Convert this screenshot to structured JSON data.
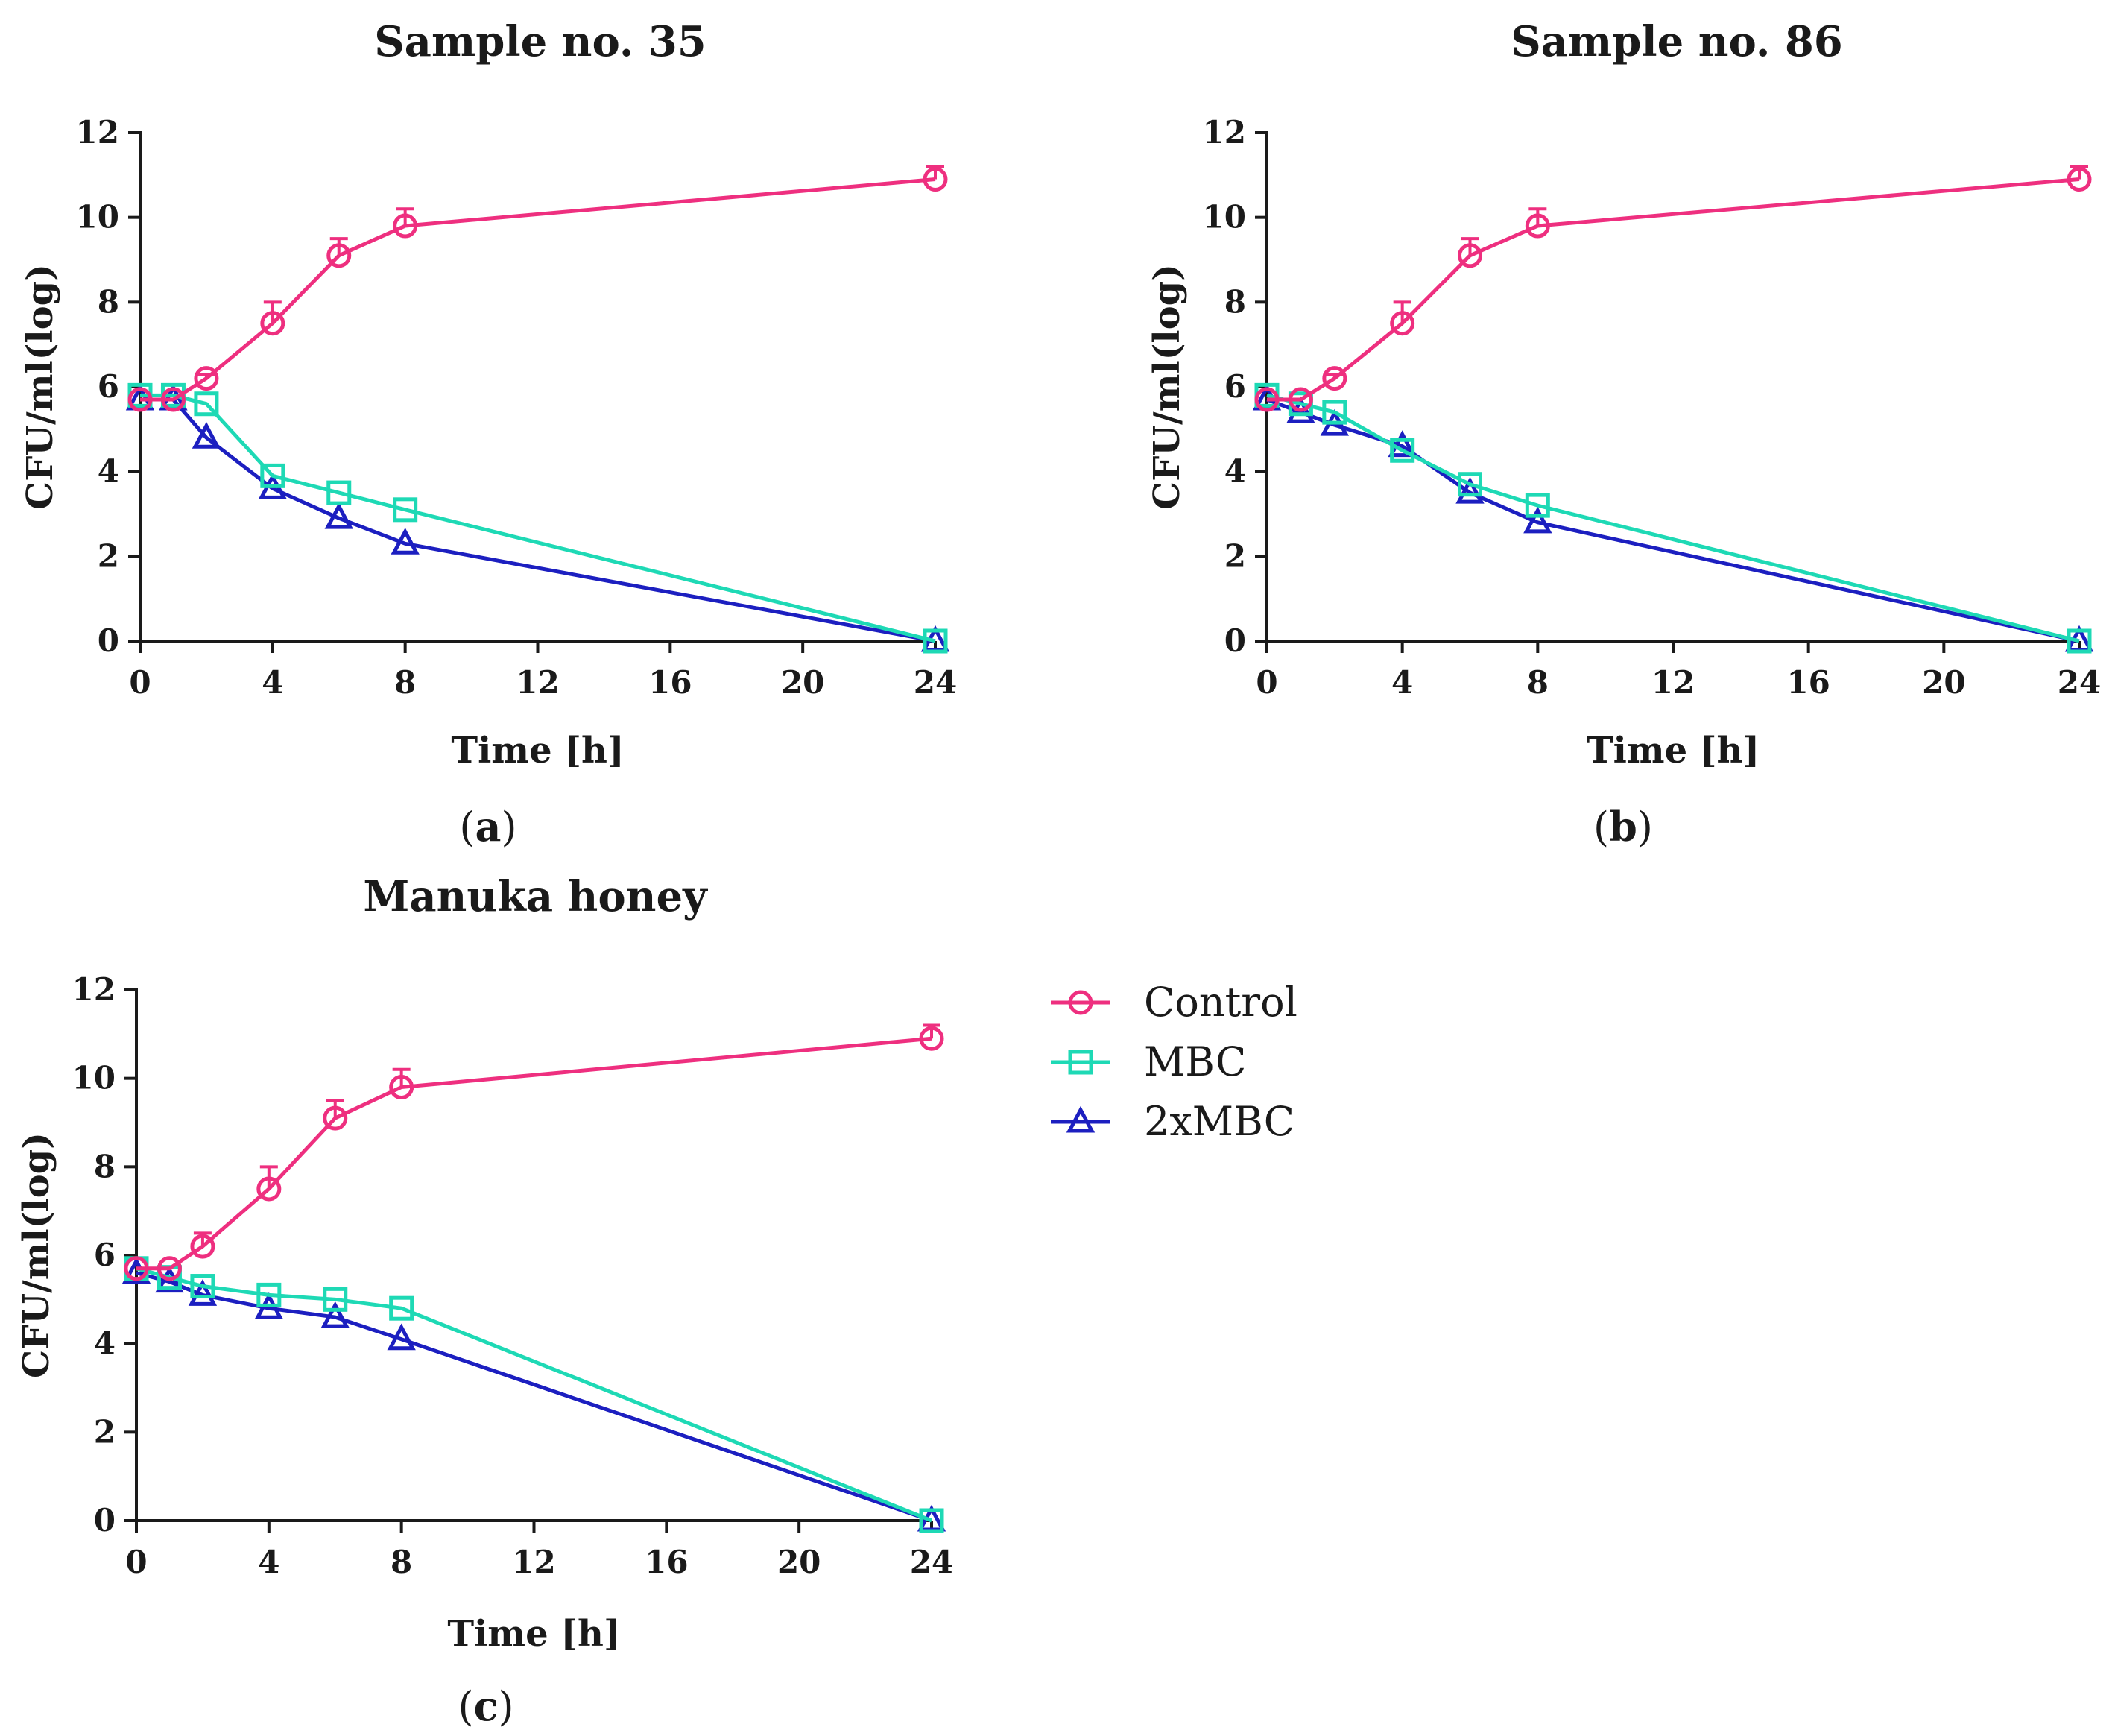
{
  "legend": [
    {
      "name": "Control",
      "color": "#ee2f7f",
      "marker": "circle"
    },
    {
      "name": "MBC",
      "color": "#1ed9b5",
      "marker": "square"
    },
    {
      "name": "2xMBC",
      "color": "#1c1fc0",
      "marker": "triangle"
    }
  ],
  "chart_data": [
    {
      "type": "line",
      "title": "Sample no. 35",
      "panel_label": "a",
      "xlabel": "Time [h]",
      "ylabel": "CFU/ml(log)",
      "xlim": [
        0,
        24
      ],
      "ylim": [
        0,
        12
      ],
      "xticks": [
        0,
        4,
        8,
        12,
        16,
        20,
        24
      ],
      "yticks": [
        0,
        2,
        4,
        6,
        8,
        10,
        12
      ],
      "x": [
        0,
        1,
        2,
        4,
        6,
        8,
        24
      ],
      "series": [
        {
          "name": "Control",
          "values": [
            5.7,
            5.7,
            6.2,
            7.5,
            9.1,
            9.8,
            10.9
          ],
          "error": [
            0,
            0,
            0.1,
            0.5,
            0.4,
            0.4,
            0.3
          ]
        },
        {
          "name": "MBC",
          "values": [
            5.8,
            5.8,
            5.6,
            3.9,
            3.5,
            3.1,
            0.0
          ]
        },
        {
          "name": "2xMBC",
          "values": [
            5.7,
            5.7,
            4.8,
            3.6,
            2.9,
            2.3,
            0.0
          ]
        }
      ]
    },
    {
      "type": "line",
      "title": "Sample no. 86",
      "panel_label": "b",
      "xlabel": "Time [h]",
      "ylabel": "CFU/ml(log)",
      "xlim": [
        0,
        24
      ],
      "ylim": [
        0,
        12
      ],
      "xticks": [
        0,
        4,
        8,
        12,
        16,
        20,
        24
      ],
      "yticks": [
        0,
        2,
        4,
        6,
        8,
        10,
        12
      ],
      "x": [
        0,
        1,
        2,
        4,
        6,
        8,
        24
      ],
      "series": [
        {
          "name": "Control",
          "values": [
            5.7,
            5.7,
            6.2,
            7.5,
            9.1,
            9.8,
            10.9
          ],
          "error": [
            0,
            0,
            0.1,
            0.5,
            0.4,
            0.4,
            0.3
          ]
        },
        {
          "name": "MBC",
          "values": [
            5.8,
            5.6,
            5.4,
            4.5,
            3.7,
            3.2,
            0.0
          ]
        },
        {
          "name": "2xMBC",
          "values": [
            5.7,
            5.4,
            5.1,
            4.6,
            3.5,
            2.8,
            0.0
          ]
        }
      ]
    },
    {
      "type": "line",
      "title": "Manuka honey",
      "panel_label": "c",
      "xlabel": "Time [h]",
      "ylabel": "CFU/ml(log)",
      "xlim": [
        0,
        24
      ],
      "ylim": [
        0,
        12
      ],
      "xticks": [
        0,
        4,
        8,
        12,
        16,
        20,
        24
      ],
      "yticks": [
        0,
        2,
        4,
        6,
        8,
        10,
        12
      ],
      "x": [
        0,
        1,
        2,
        4,
        6,
        8,
        24
      ],
      "series": [
        {
          "name": "Control",
          "values": [
            5.7,
            5.7,
            6.2,
            7.5,
            9.1,
            9.8,
            10.9
          ],
          "error": [
            0,
            0,
            0.3,
            0.5,
            0.4,
            0.4,
            0.3
          ]
        },
        {
          "name": "MBC",
          "values": [
            5.7,
            5.5,
            5.3,
            5.1,
            5.0,
            4.8,
            0.0
          ]
        },
        {
          "name": "2xMBC",
          "values": [
            5.6,
            5.4,
            5.1,
            4.8,
            4.6,
            4.1,
            0.0
          ]
        }
      ]
    }
  ]
}
